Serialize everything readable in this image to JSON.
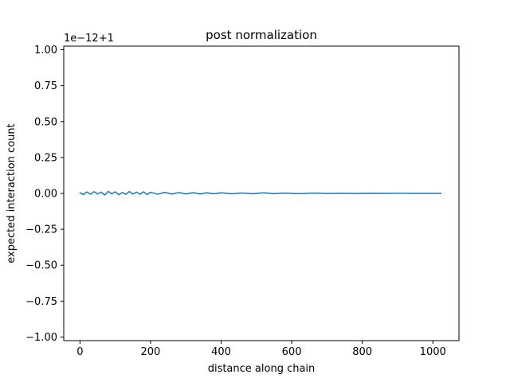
{
  "chart_data": {
    "type": "line",
    "title": "post normalization",
    "xlabel": "distance along chain",
    "ylabel": "expected interaction count",
    "offset_text": "1e−12+1",
    "xlim": [
      -46,
      1074
    ],
    "ylim": [
      -1.025,
      1.025
    ],
    "xticks": [
      0,
      200,
      400,
      600,
      800,
      1000
    ],
    "xtick_labels": [
      "0",
      "200",
      "400",
      "600",
      "800",
      "1000"
    ],
    "yticks": [
      -1.0,
      -0.75,
      -0.5,
      -0.25,
      0.0,
      0.25,
      0.5,
      0.75,
      1.0
    ],
    "ytick_labels": [
      "−1.00",
      "−0.75",
      "−0.50",
      "−0.25",
      "0.00",
      "0.25",
      "0.50",
      "0.75",
      "1.00"
    ],
    "grid": false,
    "series": [
      {
        "color": "#1f77b4",
        "x": [
          0,
          10,
          20,
          30,
          40,
          50,
          60,
          70,
          80,
          90,
          100,
          110,
          120,
          130,
          140,
          150,
          160,
          170,
          180,
          190,
          200,
          220,
          240,
          260,
          280,
          300,
          320,
          340,
          360,
          380,
          400,
          430,
          460,
          490,
          520,
          550,
          580,
          620,
          660,
          700,
          740,
          780,
          820,
          860,
          900,
          940,
          980,
          1023
        ],
        "y": [
          0.004,
          -0.008,
          0.01,
          -0.006,
          0.012,
          -0.004,
          0.009,
          -0.011,
          0.014,
          -0.003,
          0.011,
          -0.009,
          0.006,
          -0.007,
          0.013,
          -0.005,
          0.009,
          -0.006,
          0.011,
          -0.008,
          0.008,
          -0.006,
          0.007,
          -0.005,
          0.006,
          -0.004,
          0.005,
          -0.004,
          0.004,
          -0.003,
          0.004,
          -0.003,
          0.003,
          -0.003,
          0.004,
          -0.002,
          0.002,
          -0.002,
          0.002,
          -0.001,
          0.001,
          -0.001,
          0.001,
          0.0,
          0.001,
          0.0,
          0.0,
          0.0
        ]
      }
    ]
  }
}
